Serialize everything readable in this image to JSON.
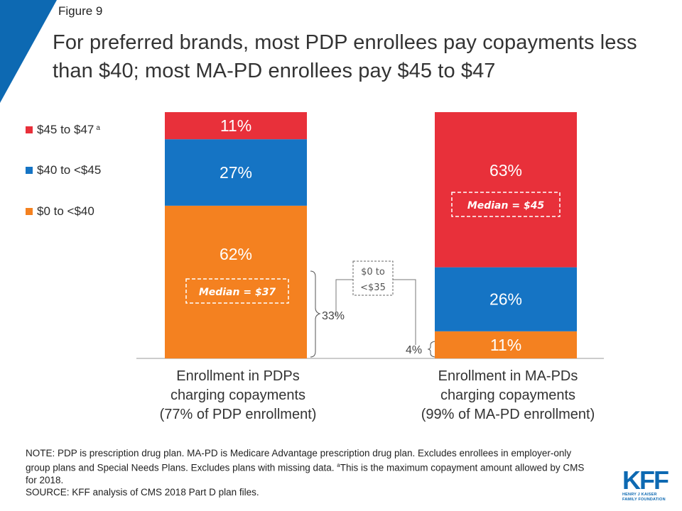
{
  "figure_label": "Figure 9",
  "title": "For preferred brands, most PDP enrollees pay copayments less than $40; most MA-PD enrollees pay $45 to $47",
  "legend": [
    {
      "label": "$45 to $47",
      "sup": "a",
      "color": "#e8303a"
    },
    {
      "label": "$40 to <$45",
      "sup": "",
      "color": "#1574c4"
    },
    {
      "label": "$0 to <$40",
      "sup": "",
      "color": "#f48120"
    }
  ],
  "chart_data": {
    "type": "bar",
    "stacked": true,
    "categories": [
      "Enrollment in PDPs charging copayments (77% of PDP enrollment)",
      "Enrollment in MA-PDs charging copayments (99% of MA-PD enrollment)"
    ],
    "series": [
      {
        "name": "$0 to <$40",
        "color": "#f48120",
        "values": [
          62,
          11
        ],
        "labels": [
          "62%",
          "11%"
        ]
      },
      {
        "name": "$40 to <$45",
        "color": "#1574c4",
        "values": [
          27,
          26
        ],
        "labels": [
          "27%",
          "26%"
        ]
      },
      {
        "name": "$45 to $47",
        "color": "#e8303a",
        "values": [
          11,
          63
        ],
        "labels": [
          "11%",
          "63%"
        ]
      }
    ],
    "ylim": [
      0,
      100
    ],
    "grid": false,
    "legend_position": "left",
    "annotations": {
      "pdp_median": "Median = $37",
      "mapd_median": "Median = $45",
      "sub_range_label": "$0 to <$35",
      "pdp_sub_share": "33%",
      "mapd_sub_share": "4%"
    }
  },
  "x_labels": [
    [
      "Enrollment in PDPs",
      "charging copayments",
      "(77% of PDP enrollment)"
    ],
    [
      "Enrollment in MA-PDs",
      "charging copayments",
      "(99% of MA-PD enrollment)"
    ]
  ],
  "note": {
    "line1": "NOTE: PDP is prescription drug plan. MA-PD is Medicare Advantage prescription drug plan. Excludes enrollees in employer-only group plans and Special Needs Plans. Excludes plans with missing data. ",
    "sup": "a",
    "line2": "This is the maximum copayment amount allowed by CMS for 2018.",
    "source": "SOURCE: KFF analysis of CMS 2018 Part D plan files."
  },
  "logo": {
    "main": "KFF",
    "sub1": "HENRY J KAISER",
    "sub2": "FAMILY FOUNDATION"
  },
  "colors": {
    "accent_triangle": "#0d69b2"
  }
}
